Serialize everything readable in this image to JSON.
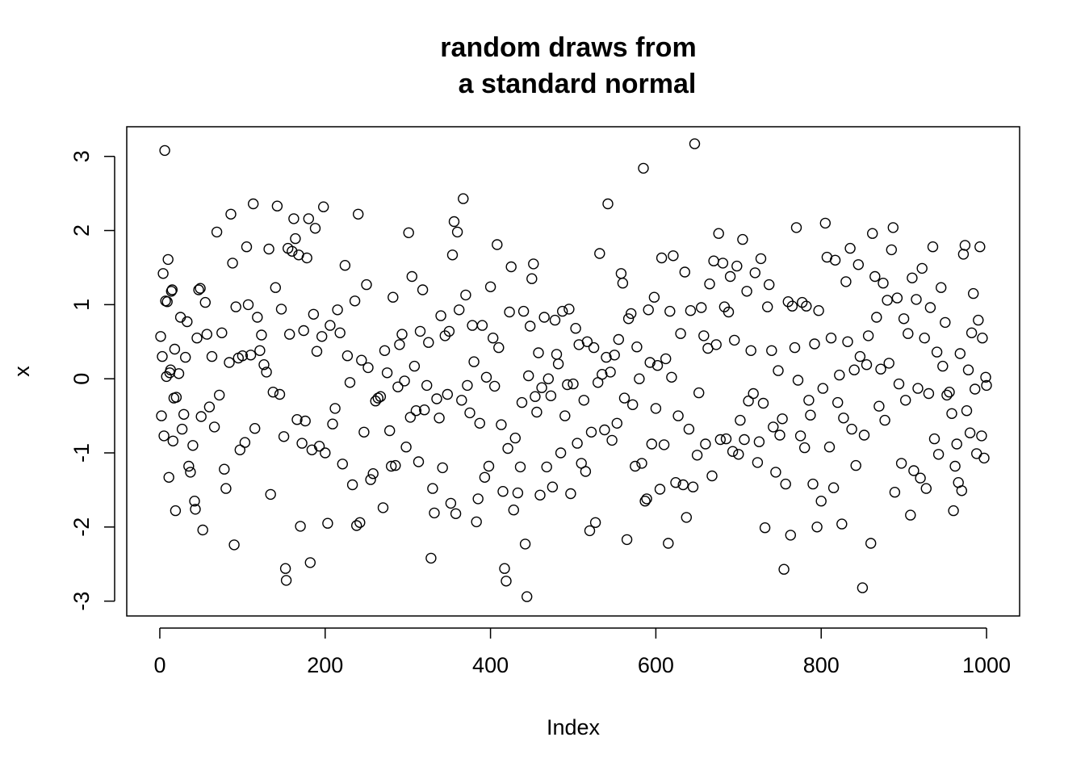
{
  "chart_data": {
    "type": "scatter",
    "title_lines": [
      "random draws from",
      "a standard normal"
    ],
    "xlabel": "Index",
    "ylabel": "x",
    "xlim": [
      -40,
      1040
    ],
    "ylim": [
      -3.2,
      3.4
    ],
    "x_ticks": [
      0,
      200,
      400,
      600,
      800,
      1000
    ],
    "x_tick_labels": [
      "0",
      "200",
      "400",
      "600",
      "800",
      "1000"
    ],
    "y_ticks": [
      -3,
      -2,
      -1,
      0,
      1,
      2,
      3
    ],
    "y_tick_labels": [
      "-3",
      "-2",
      "-1",
      "0",
      "1",
      "2",
      "3"
    ],
    "grid": false,
    "point_style": "open circle",
    "n_points": 1000,
    "points": [
      [
        1,
        0.57
      ],
      [
        2,
        -0.5
      ],
      [
        3,
        0.3
      ],
      [
        4,
        1.42
      ],
      [
        5,
        -0.77
      ],
      [
        6,
        3.08
      ],
      [
        7,
        1.05
      ],
      [
        8,
        0.03
      ],
      [
        9,
        1.04
      ],
      [
        10,
        1.61
      ],
      [
        11,
        -1.33
      ],
      [
        12,
        0.08
      ],
      [
        13,
        0.12
      ],
      [
        14,
        1.18
      ],
      [
        15,
        1.2
      ],
      [
        16,
        -0.84
      ],
      [
        17,
        -0.26
      ],
      [
        18,
        0.4
      ],
      [
        19,
        -1.78
      ],
      [
        20,
        -0.25
      ],
      [
        23,
        0.07
      ],
      [
        25,
        0.83
      ],
      [
        27,
        -0.68
      ],
      [
        29,
        -0.48
      ],
      [
        31,
        0.29
      ],
      [
        33,
        0.77
      ],
      [
        35,
        -1.18
      ],
      [
        37,
        -1.26
      ],
      [
        40,
        -0.9
      ],
      [
        42,
        -1.65
      ],
      [
        43,
        -1.76
      ],
      [
        45,
        0.55
      ],
      [
        47,
        1.2
      ],
      [
        49,
        1.22
      ],
      [
        50,
        -0.51
      ],
      [
        52,
        -2.04
      ],
      [
        55,
        1.03
      ],
      [
        57,
        0.6
      ],
      [
        60,
        -0.38
      ],
      [
        63,
        0.3
      ],
      [
        66,
        -0.65
      ],
      [
        69,
        1.98
      ],
      [
        72,
        -0.22
      ],
      [
        75,
        0.62
      ],
      [
        78,
        -1.22
      ],
      [
        80,
        -1.48
      ],
      [
        84,
        0.22
      ],
      [
        86,
        2.22
      ],
      [
        88,
        1.56
      ],
      [
        90,
        -2.24
      ],
      [
        92,
        0.97
      ],
      [
        95,
        0.28
      ],
      [
        97,
        -0.96
      ],
      [
        100,
        0.31
      ],
      [
        103,
        -0.86
      ],
      [
        105,
        1.78
      ],
      [
        107,
        1.0
      ],
      [
        110,
        0.32
      ],
      [
        113,
        2.36
      ],
      [
        115,
        -0.67
      ],
      [
        118,
        0.83
      ],
      [
        121,
        0.38
      ],
      [
        123,
        0.59
      ],
      [
        126,
        0.19
      ],
      [
        129,
        0.09
      ],
      [
        132,
        1.75
      ],
      [
        134,
        -1.56
      ],
      [
        137,
        -0.18
      ],
      [
        140,
        1.23
      ],
      [
        142,
        2.33
      ],
      [
        145,
        -0.21
      ],
      [
        147,
        0.94
      ],
      [
        150,
        -0.78
      ],
      [
        152,
        -2.56
      ],
      [
        153,
        -2.72
      ],
      [
        155,
        1.76
      ],
      [
        157,
        0.6
      ],
      [
        160,
        1.72
      ],
      [
        162,
        2.16
      ],
      [
        164,
        1.89
      ],
      [
        166,
        -0.55
      ],
      [
        168,
        1.67
      ],
      [
        170,
        -1.99
      ],
      [
        172,
        -0.87
      ],
      [
        174,
        0.65
      ],
      [
        176,
        -0.57
      ],
      [
        178,
        1.63
      ],
      [
        180,
        2.16
      ],
      [
        182,
        -2.48
      ],
      [
        184,
        -0.96
      ],
      [
        186,
        0.87
      ],
      [
        188,
        2.03
      ],
      [
        190,
        0.37
      ],
      [
        193,
        -0.91
      ],
      [
        196,
        0.57
      ],
      [
        198,
        2.32
      ],
      [
        200,
        -1.0
      ],
      [
        203,
        -1.95
      ],
      [
        206,
        0.72
      ],
      [
        209,
        -0.61
      ],
      [
        212,
        -0.4
      ],
      [
        215,
        0.93
      ],
      [
        218,
        0.62
      ],
      [
        221,
        -1.15
      ],
      [
        224,
        1.53
      ],
      [
        227,
        0.31
      ],
      [
        230,
        -0.05
      ],
      [
        233,
        -1.43
      ],
      [
        236,
        1.05
      ],
      [
        238,
        -1.98
      ],
      [
        240,
        2.22
      ],
      [
        242,
        -1.94
      ],
      [
        244,
        0.25
      ],
      [
        247,
        -0.72
      ],
      [
        250,
        1.27
      ],
      [
        252,
        0.15
      ],
      [
        255,
        -1.36
      ],
      [
        258,
        -1.28
      ],
      [
        261,
        -0.3
      ],
      [
        264,
        -0.26
      ],
      [
        267,
        -0.24
      ],
      [
        270,
        -1.74
      ],
      [
        272,
        0.38
      ],
      [
        275,
        0.08
      ],
      [
        278,
        -0.7
      ],
      [
        280,
        -1.18
      ],
      [
        282,
        1.1
      ],
      [
        285,
        -1.17
      ],
      [
        288,
        -0.11
      ],
      [
        290,
        0.46
      ],
      [
        293,
        0.6
      ],
      [
        296,
        -0.03
      ],
      [
        298,
        -0.92
      ],
      [
        301,
        1.97
      ],
      [
        303,
        -0.52
      ],
      [
        305,
        1.38
      ],
      [
        308,
        0.17
      ],
      [
        310,
        -0.43
      ],
      [
        313,
        -1.12
      ],
      [
        315,
        0.64
      ],
      [
        318,
        1.2
      ],
      [
        320,
        -0.42
      ],
      [
        323,
        -0.09
      ],
      [
        325,
        0.49
      ],
      [
        328,
        -2.42
      ],
      [
        330,
        -1.48
      ],
      [
        332,
        -1.81
      ],
      [
        335,
        -0.27
      ],
      [
        338,
        -0.53
      ],
      [
        340,
        0.85
      ],
      [
        342,
        -1.2
      ],
      [
        345,
        0.58
      ],
      [
        348,
        -0.21
      ],
      [
        350,
        0.64
      ],
      [
        352,
        -1.68
      ],
      [
        354,
        1.67
      ],
      [
        356,
        2.12
      ],
      [
        358,
        -1.82
      ],
      [
        360,
        1.98
      ],
      [
        362,
        0.93
      ],
      [
        365,
        -0.29
      ],
      [
        367,
        2.43
      ],
      [
        370,
        1.13
      ],
      [
        372,
        -0.09
      ],
      [
        375,
        -0.46
      ],
      [
        378,
        0.72
      ],
      [
        380,
        0.23
      ],
      [
        383,
        -1.93
      ],
      [
        385,
        -1.62
      ],
      [
        387,
        -0.6
      ],
      [
        390,
        0.72
      ],
      [
        393,
        -1.33
      ],
      [
        395,
        0.02
      ],
      [
        398,
        -1.18
      ],
      [
        400,
        1.24
      ],
      [
        403,
        0.55
      ],
      [
        405,
        -0.1
      ],
      [
        408,
        1.81
      ],
      [
        410,
        0.42
      ],
      [
        413,
        -0.62
      ],
      [
        415,
        -1.52
      ],
      [
        417,
        -2.56
      ],
      [
        419,
        -2.73
      ],
      [
        421,
        -0.94
      ],
      [
        423,
        0.9
      ],
      [
        425,
        1.51
      ],
      [
        428,
        -1.77
      ],
      [
        430,
        -0.8
      ],
      [
        433,
        -1.54
      ],
      [
        436,
        -1.19
      ],
      [
        438,
        -0.32
      ],
      [
        440,
        0.91
      ],
      [
        442,
        -2.23
      ],
      [
        444,
        -2.94
      ],
      [
        446,
        0.04
      ],
      [
        448,
        0.71
      ],
      [
        450,
        1.35
      ],
      [
        452,
        1.55
      ],
      [
        454,
        -0.24
      ],
      [
        456,
        -0.45
      ],
      [
        458,
        0.35
      ],
      [
        460,
        -1.57
      ],
      [
        462,
        -0.12
      ],
      [
        465,
        0.83
      ],
      [
        468,
        -1.19
      ],
      [
        470,
        0.0
      ],
      [
        473,
        -0.23
      ],
      [
        475,
        -1.46
      ],
      [
        478,
        0.79
      ],
      [
        480,
        0.33
      ],
      [
        482,
        0.2
      ],
      [
        485,
        -1.0
      ],
      [
        487,
        0.91
      ],
      [
        490,
        -0.5
      ],
      [
        493,
        -0.08
      ],
      [
        495,
        0.94
      ],
      [
        497,
        -1.55
      ],
      [
        500,
        -0.07
      ],
      [
        503,
        0.68
      ],
      [
        505,
        -0.87
      ],
      [
        507,
        0.46
      ],
      [
        510,
        -1.14
      ],
      [
        513,
        -0.29
      ],
      [
        515,
        -1.25
      ],
      [
        517,
        0.5
      ],
      [
        520,
        -2.05
      ],
      [
        522,
        -0.72
      ],
      [
        525,
        0.42
      ],
      [
        527,
        -1.94
      ],
      [
        530,
        -0.05
      ],
      [
        532,
        1.69
      ],
      [
        535,
        0.06
      ],
      [
        538,
        -0.69
      ],
      [
        540,
        0.29
      ],
      [
        542,
        2.36
      ],
      [
        545,
        0.09
      ],
      [
        547,
        -0.83
      ],
      [
        550,
        0.32
      ],
      [
        553,
        -0.6
      ],
      [
        555,
        0.53
      ],
      [
        558,
        1.42
      ],
      [
        560,
        1.29
      ],
      [
        562,
        -0.26
      ],
      [
        565,
        -2.17
      ],
      [
        567,
        0.81
      ],
      [
        570,
        0.88
      ],
      [
        572,
        -0.35
      ],
      [
        575,
        -1.18
      ],
      [
        577,
        0.43
      ],
      [
        580,
        0.0
      ],
      [
        583,
        -1.14
      ],
      [
        585,
        2.84
      ],
      [
        587,
        -1.65
      ],
      [
        589,
        -1.62
      ],
      [
        591,
        0.93
      ],
      [
        593,
        0.22
      ],
      [
        595,
        -0.88
      ],
      [
        598,
        1.1
      ],
      [
        600,
        -0.4
      ],
      [
        602,
        0.18
      ],
      [
        605,
        -1.49
      ],
      [
        607,
        1.63
      ],
      [
        610,
        -0.89
      ],
      [
        612,
        0.27
      ],
      [
        615,
        -2.22
      ],
      [
        617,
        0.91
      ],
      [
        619,
        0.02
      ],
      [
        621,
        1.66
      ],
      [
        624,
        -1.4
      ],
      [
        627,
        -0.5
      ],
      [
        630,
        0.61
      ],
      [
        633,
        -1.43
      ],
      [
        635,
        1.44
      ],
      [
        637,
        -1.87
      ],
      [
        640,
        -0.68
      ],
      [
        642,
        0.92
      ],
      [
        645,
        -1.46
      ],
      [
        647,
        3.17
      ],
      [
        650,
        -1.03
      ],
      [
        652,
        -0.19
      ],
      [
        655,
        0.96
      ],
      [
        658,
        0.58
      ],
      [
        660,
        -0.88
      ],
      [
        663,
        0.41
      ],
      [
        665,
        1.28
      ],
      [
        668,
        -1.31
      ],
      [
        670,
        1.59
      ],
      [
        673,
        0.46
      ],
      [
        676,
        1.96
      ],
      [
        678,
        -0.82
      ],
      [
        681,
        1.56
      ],
      [
        683,
        0.97
      ],
      [
        685,
        -0.81
      ],
      [
        688,
        0.9
      ],
      [
        690,
        1.38
      ],
      [
        693,
        -0.98
      ],
      [
        695,
        0.52
      ],
      [
        698,
        1.52
      ],
      [
        700,
        -1.02
      ],
      [
        702,
        -0.56
      ],
      [
        705,
        1.88
      ],
      [
        707,
        -0.82
      ],
      [
        710,
        1.18
      ],
      [
        712,
        -0.3
      ],
      [
        715,
        0.38
      ],
      [
        718,
        -0.2
      ],
      [
        720,
        1.43
      ],
      [
        723,
        -1.13
      ],
      [
        725,
        -0.85
      ],
      [
        727,
        1.62
      ],
      [
        730,
        -0.33
      ],
      [
        732,
        -2.01
      ],
      [
        735,
        0.97
      ],
      [
        737,
        1.27
      ],
      [
        740,
        0.38
      ],
      [
        742,
        -0.65
      ],
      [
        745,
        -1.26
      ],
      [
        748,
        0.11
      ],
      [
        750,
        -0.76
      ],
      [
        753,
        -0.54
      ],
      [
        755,
        -2.57
      ],
      [
        757,
        -1.42
      ],
      [
        760,
        1.04
      ],
      [
        763,
        -2.11
      ],
      [
        765,
        0.98
      ],
      [
        768,
        0.42
      ],
      [
        770,
        2.04
      ],
      [
        772,
        -0.02
      ],
      [
        775,
        -0.77
      ],
      [
        777,
        1.03
      ],
      [
        780,
        -0.93
      ],
      [
        782,
        0.98
      ],
      [
        785,
        -0.29
      ],
      [
        787,
        -0.49
      ],
      [
        790,
        -1.42
      ],
      [
        792,
        0.47
      ],
      [
        795,
        -2.0
      ],
      [
        797,
        0.92
      ],
      [
        800,
        -1.65
      ],
      [
        802,
        -0.13
      ],
      [
        805,
        2.1
      ],
      [
        807,
        1.64
      ],
      [
        810,
        -0.92
      ],
      [
        812,
        0.55
      ],
      [
        815,
        -1.47
      ],
      [
        817,
        1.6
      ],
      [
        820,
        -0.32
      ],
      [
        822,
        0.05
      ],
      [
        825,
        -1.96
      ],
      [
        827,
        -0.53
      ],
      [
        830,
        1.31
      ],
      [
        832,
        0.5
      ],
      [
        835,
        1.76
      ],
      [
        837,
        -0.68
      ],
      [
        840,
        0.12
      ],
      [
        842,
        -1.17
      ],
      [
        845,
        1.54
      ],
      [
        847,
        0.3
      ],
      [
        850,
        -2.82
      ],
      [
        852,
        -0.76
      ],
      [
        855,
        0.19
      ],
      [
        857,
        0.58
      ],
      [
        860,
        -2.22
      ],
      [
        862,
        1.96
      ],
      [
        865,
        1.38
      ],
      [
        867,
        0.83
      ],
      [
        870,
        -0.37
      ],
      [
        872,
        0.13
      ],
      [
        875,
        1.29
      ],
      [
        877,
        -0.56
      ],
      [
        880,
        1.06
      ],
      [
        882,
        0.21
      ],
      [
        885,
        1.74
      ],
      [
        887,
        2.04
      ],
      [
        889,
        -1.53
      ],
      [
        892,
        1.09
      ],
      [
        894,
        -0.07
      ],
      [
        897,
        -1.14
      ],
      [
        900,
        0.81
      ],
      [
        902,
        -0.29
      ],
      [
        905,
        0.61
      ],
      [
        908,
        -1.84
      ],
      [
        910,
        1.36
      ],
      [
        912,
        -1.24
      ],
      [
        915,
        1.07
      ],
      [
        917,
        -0.13
      ],
      [
        920,
        -1.34
      ],
      [
        922,
        1.49
      ],
      [
        925,
        0.55
      ],
      [
        927,
        -1.48
      ],
      [
        930,
        -0.2
      ],
      [
        932,
        0.96
      ],
      [
        935,
        1.78
      ],
      [
        937,
        -0.81
      ],
      [
        940,
        0.36
      ],
      [
        942,
        -1.02
      ],
      [
        945,
        1.23
      ],
      [
        947,
        0.17
      ],
      [
        950,
        0.76
      ],
      [
        952,
        -0.22
      ],
      [
        955,
        -0.18
      ],
      [
        958,
        -0.47
      ],
      [
        960,
        -1.78
      ],
      [
        962,
        -1.18
      ],
      [
        964,
        -0.88
      ],
      [
        966,
        -1.4
      ],
      [
        968,
        0.34
      ],
      [
        970,
        -1.51
      ],
      [
        972,
        1.68
      ],
      [
        974,
        1.8
      ],
      [
        976,
        -0.43
      ],
      [
        978,
        0.12
      ],
      [
        980,
        -0.73
      ],
      [
        982,
        0.62
      ],
      [
        984,
        1.15
      ],
      [
        986,
        -0.14
      ],
      [
        988,
        -1.01
      ],
      [
        990,
        0.79
      ],
      [
        992,
        1.78
      ],
      [
        994,
        -0.77
      ],
      [
        995,
        0.55
      ],
      [
        997,
        -1.07
      ],
      [
        999,
        0.02
      ],
      [
        1000,
        -0.09
      ]
    ]
  }
}
